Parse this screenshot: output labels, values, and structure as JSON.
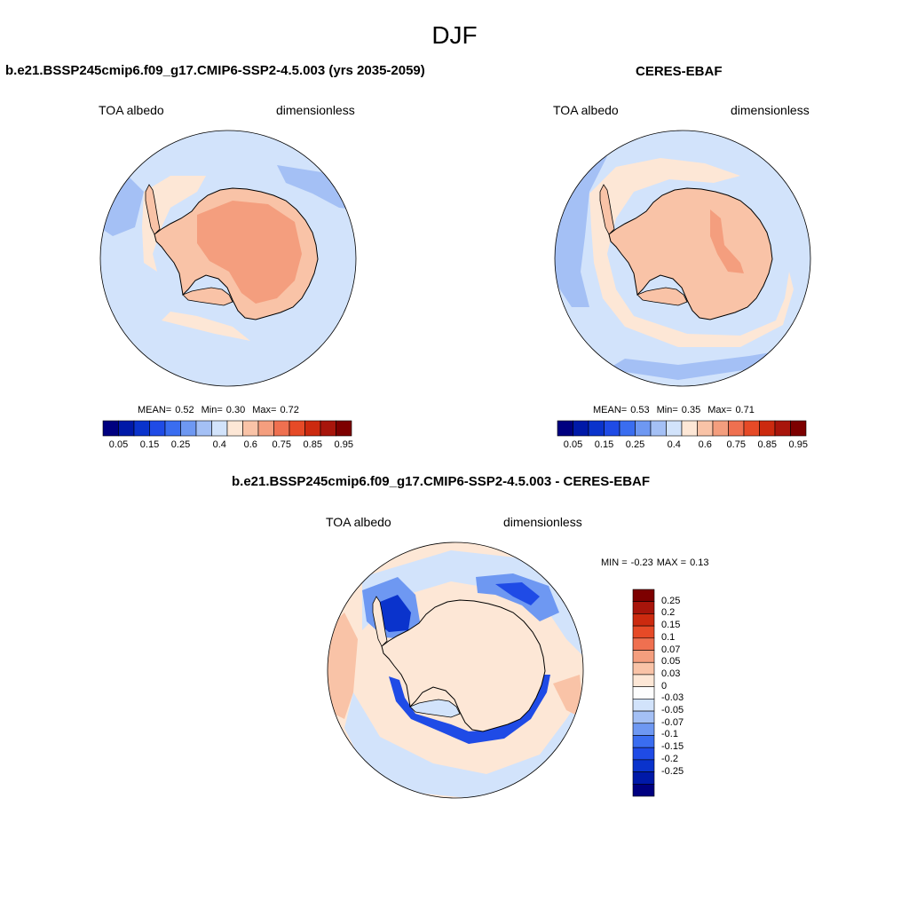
{
  "title": "DJF",
  "panels": [
    {
      "id": "model",
      "title": "b.e21.BSSP245cmip6.f09_g17.CMIP6-SSP2-4.5.003 (yrs 2035-2059)",
      "left_label": "TOA albedo",
      "right_label": "dimensionless",
      "stats": {
        "mean_label": "MEAN=",
        "mean": "0.52",
        "min_label": "Min=",
        "min": "0.30",
        "max_label": "Max=",
        "max": "0.72"
      }
    },
    {
      "id": "obs",
      "title": "CERES-EBAF",
      "left_label": "TOA albedo",
      "right_label": "dimensionless",
      "stats": {
        "mean_label": "MEAN=",
        "mean": "0.53",
        "min_label": "Min=",
        "min": "0.35",
        "max_label": "Max=",
        "max": "0.71"
      }
    },
    {
      "id": "diff",
      "title": "b.e21.BSSP245cmip6.f09_g17.CMIP6-SSP2-4.5.003 - CERES-EBAF",
      "left_label": "TOA albedo",
      "right_label": "dimensionless",
      "stats_text": {
        "min_label": "MIN =",
        "min": "-0.23",
        "max_label": "MAX =",
        "max": "0.13"
      }
    }
  ],
  "colorbar_abs": {
    "colors": [
      "#000080",
      "#0019a8",
      "#0a33cc",
      "#1f4be6",
      "#3a6df0",
      "#6e98f2",
      "#a4c0f5",
      "#d2e3fb",
      "#fde7d6",
      "#f9c3a7",
      "#f49e7e",
      "#ef7050",
      "#e64a27",
      "#cc2a0f",
      "#a8150b",
      "#7d0000"
    ],
    "tick_labels": [
      "0.05",
      "0.15",
      "0.25",
      "0.4",
      "0.6",
      "0.75",
      "0.85",
      "0.95"
    ]
  },
  "colorbar_diff": {
    "colors": [
      "#7d0000",
      "#a8150b",
      "#cc2a0f",
      "#e64a27",
      "#ef7050",
      "#f49e7e",
      "#f9c3a7",
      "#fde7d6",
      "#fdfdfd",
      "#d2e3fb",
      "#a4c0f5",
      "#6e98f2",
      "#3a6df0",
      "#1f4be6",
      "#0a33cc",
      "#0019a8",
      "#000080"
    ],
    "tick_labels": [
      "0.25",
      "0.2",
      "0.15",
      "0.1",
      "0.07",
      "0.05",
      "0.03",
      "0",
      "-0.03",
      "-0.05",
      "-0.07",
      "-0.1",
      "-0.15",
      "-0.2",
      "-0.25"
    ]
  },
  "map_colors": {
    "ocean": "#d2e3fb",
    "ocean_mid": "#a4c0f5",
    "ocean_dark": "#6e98f2",
    "ice_light": "#fde7d6",
    "ice_mid": "#f9c3a7",
    "ice_strong": "#f49e7e",
    "diff_neutral": "#fde7d6",
    "diff_neg1": "#d2e3fb",
    "diff_neg2": "#6e98f2",
    "diff_neg3": "#1f4be6",
    "diff_neg4": "#0a33cc",
    "diff_pos": "#f9c3a7"
  }
}
